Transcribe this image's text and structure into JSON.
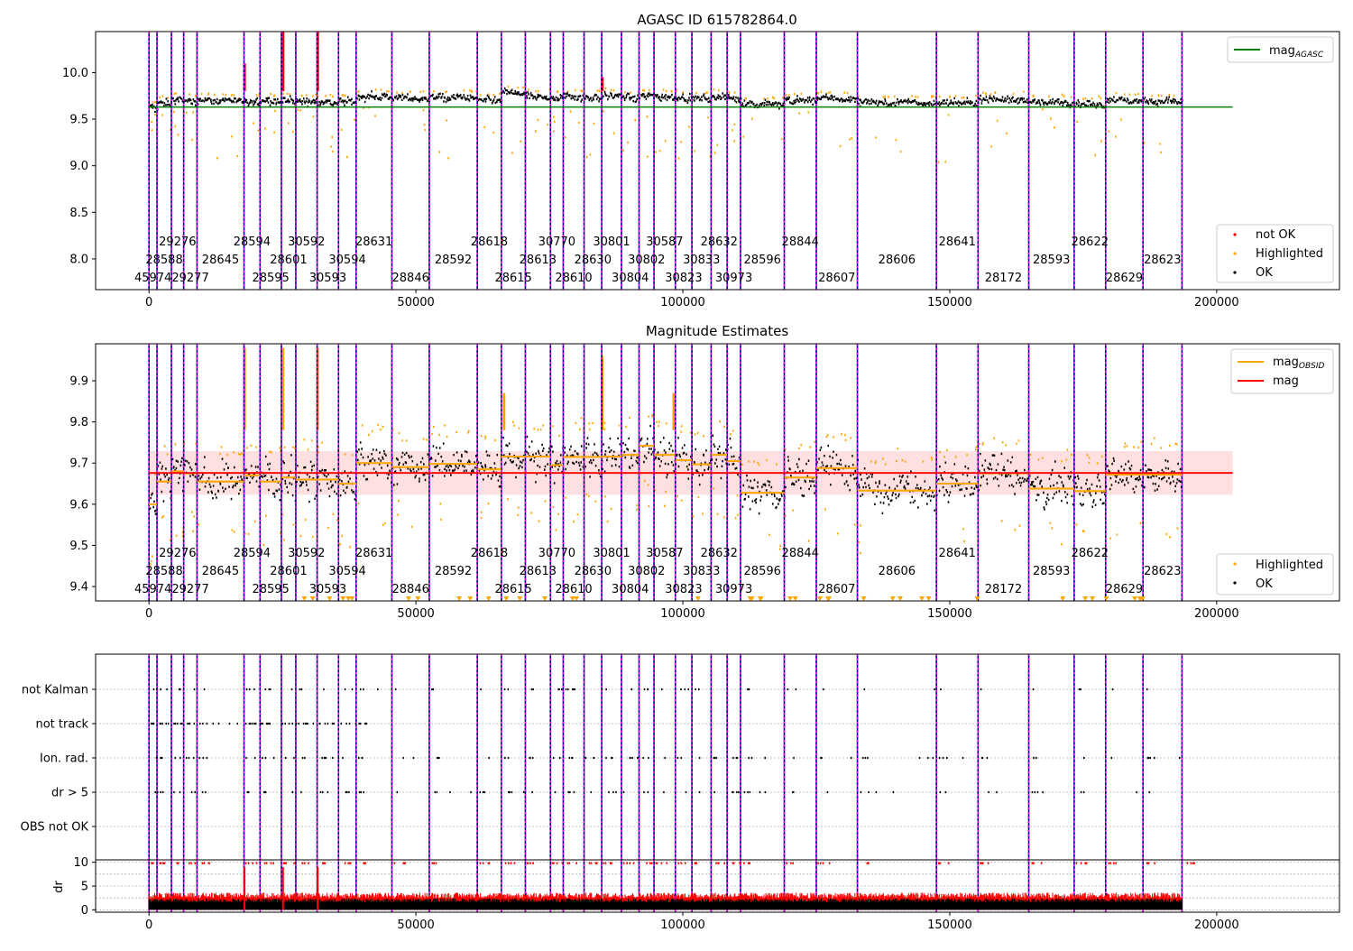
{
  "page": {
    "title": "AGASC ID 615782864.0"
  },
  "chart_data": [
    {
      "id": "magnitudes",
      "type": "scatter",
      "title": "AGASC ID 615782864.0",
      "xlim": [
        -10000,
        223000
      ],
      "ylim": [
        7.67,
        10.44
      ],
      "xticks": [
        0,
        50000,
        100000,
        150000,
        200000
      ],
      "yticks": [
        8.0,
        8.5,
        9.0,
        9.5,
        10.0
      ],
      "ytick_labels": [
        "8.0",
        "8.5",
        "9.0",
        "9.5",
        "10.0"
      ],
      "legend_top": "top-right",
      "legend_bottom": "bottom-right",
      "mag_agasc": 9.63,
      "mag_agasc_xrange": [
        0,
        203000
      ],
      "legend": {
        "line_label": "mag",
        "line_sub": "AGASC",
        "line_color": "#008000",
        "not_ok": "not OK",
        "highlighted": "Highlighted",
        "ok": "OK",
        "colors": {
          "not_ok": "#ff0000",
          "highlighted": "#ffa500",
          "ok": "#000000"
        }
      },
      "segments": [
        {
          "x0": 0,
          "x1": 1500,
          "mag": 9.62
        },
        {
          "x0": 1500,
          "x1": 4200,
          "mag": 9.67
        },
        {
          "x0": 4200,
          "x1": 6500,
          "mag": 9.7
        },
        {
          "x0": 6500,
          "x1": 9000,
          "mag": 9.69
        },
        {
          "x0": 9000,
          "x1": 17800,
          "mag": 9.7
        },
        {
          "x0": 17800,
          "x1": 20800,
          "mag": 9.69
        },
        {
          "x0": 20800,
          "x1": 24800,
          "mag": 9.69
        },
        {
          "x0": 24800,
          "x1": 27500,
          "mag": 9.7
        },
        {
          "x0": 27500,
          "x1": 31500,
          "mag": 9.69
        },
        {
          "x0": 31500,
          "x1": 35500,
          "mag": 9.68
        },
        {
          "x0": 35500,
          "x1": 38800,
          "mag": 9.69
        },
        {
          "x0": 38800,
          "x1": 45500,
          "mag": 9.74
        },
        {
          "x0": 45500,
          "x1": 52500,
          "mag": 9.72
        },
        {
          "x0": 52500,
          "x1": 61500,
          "mag": 9.73
        },
        {
          "x0": 61500,
          "x1": 66000,
          "mag": 9.7
        },
        {
          "x0": 66000,
          "x1": 70500,
          "mag": 9.78
        },
        {
          "x0": 70500,
          "x1": 75200,
          "mag": 9.74
        },
        {
          "x0": 75200,
          "x1": 77600,
          "mag": 9.72
        },
        {
          "x0": 77600,
          "x1": 81500,
          "mag": 9.74
        },
        {
          "x0": 81500,
          "x1": 84800,
          "mag": 9.73
        },
        {
          "x0": 84800,
          "x1": 88500,
          "mag": 9.75
        },
        {
          "x0": 88500,
          "x1": 91800,
          "mag": 9.73
        },
        {
          "x0": 91800,
          "x1": 94600,
          "mag": 9.75
        },
        {
          "x0": 94600,
          "x1": 98600,
          "mag": 9.74
        },
        {
          "x0": 98600,
          "x1": 101700,
          "mag": 9.73
        },
        {
          "x0": 101700,
          "x1": 105300,
          "mag": 9.72
        },
        {
          "x0": 105300,
          "x1": 108300,
          "mag": 9.74
        },
        {
          "x0": 108300,
          "x1": 110800,
          "mag": 9.72
        },
        {
          "x0": 110800,
          "x1": 119000,
          "mag": 9.66
        },
        {
          "x0": 119000,
          "x1": 125000,
          "mag": 9.7
        },
        {
          "x0": 125000,
          "x1": 132700,
          "mag": 9.72
        },
        {
          "x0": 132700,
          "x1": 147500,
          "mag": 9.68
        },
        {
          "x0": 147500,
          "x1": 155300,
          "mag": 9.67
        },
        {
          "x0": 155300,
          "x1": 164800,
          "mag": 9.71
        },
        {
          "x0": 164800,
          "x1": 173300,
          "mag": 9.68
        },
        {
          "x0": 173300,
          "x1": 179200,
          "mag": 9.66
        },
        {
          "x0": 179200,
          "x1": 186200,
          "mag": 9.7
        },
        {
          "x0": 186200,
          "x1": 193500,
          "mag": 9.69
        }
      ],
      "spikes": [
        {
          "x": 17900,
          "to": 10.1
        },
        {
          "x": 25100,
          "to": 10.44
        },
        {
          "x": 31600,
          "to": 10.44
        },
        {
          "x": 84900,
          "to": 9.95
        }
      ]
    },
    {
      "id": "magnitude-estimates",
      "type": "scatter",
      "title": "Magnitude Estimates",
      "xlim": [
        -10000,
        223000
      ],
      "ylim": [
        9.365,
        9.99
      ],
      "xticks": [
        0,
        50000,
        100000,
        150000,
        200000
      ],
      "yticks": [
        9.4,
        9.5,
        9.6,
        9.7,
        9.8,
        9.9
      ],
      "ytick_labels": [
        "9.4",
        "9.5",
        "9.6",
        "9.7",
        "9.8",
        "9.9"
      ],
      "mag": 9.676,
      "mag_band": [
        9.623,
        9.729
      ],
      "mag_xrange": [
        0,
        203000
      ],
      "legend": {
        "obsid_label": "mag",
        "obsid_sub": "OBSID",
        "obsid_color": "#ffa500",
        "mag_label": "mag",
        "mag_color": "#ff0000",
        "highlighted": "Highlighted",
        "ok": "OK"
      },
      "segments": [
        {
          "x0": 0,
          "x1": 1500,
          "mag": 9.6
        },
        {
          "x0": 1500,
          "x1": 4200,
          "mag": 9.655
        },
        {
          "x0": 4200,
          "x1": 6500,
          "mag": 9.68
        },
        {
          "x0": 6500,
          "x1": 9000,
          "mag": 9.675
        },
        {
          "x0": 9000,
          "x1": 17800,
          "mag": 9.655
        },
        {
          "x0": 17800,
          "x1": 20800,
          "mag": 9.67
        },
        {
          "x0": 20800,
          "x1": 24800,
          "mag": 9.655
        },
        {
          "x0": 24800,
          "x1": 27500,
          "mag": 9.665
        },
        {
          "x0": 27500,
          "x1": 31500,
          "mag": 9.66
        },
        {
          "x0": 31500,
          "x1": 35500,
          "mag": 9.66
        },
        {
          "x0": 35500,
          "x1": 38800,
          "mag": 9.65
        },
        {
          "x0": 38800,
          "x1": 45500,
          "mag": 9.7
        },
        {
          "x0": 45500,
          "x1": 52500,
          "mag": 9.69
        },
        {
          "x0": 52500,
          "x1": 61500,
          "mag": 9.698
        },
        {
          "x0": 61500,
          "x1": 66000,
          "mag": 9.685
        },
        {
          "x0": 66000,
          "x1": 70500,
          "mag": 9.716
        },
        {
          "x0": 70500,
          "x1": 75200,
          "mag": 9.716
        },
        {
          "x0": 75200,
          "x1": 77600,
          "mag": 9.695
        },
        {
          "x0": 77600,
          "x1": 81500,
          "mag": 9.715
        },
        {
          "x0": 81500,
          "x1": 84800,
          "mag": 9.715
        },
        {
          "x0": 84800,
          "x1": 88500,
          "mag": 9.716
        },
        {
          "x0": 88500,
          "x1": 91800,
          "mag": 9.72
        },
        {
          "x0": 91800,
          "x1": 94600,
          "mag": 9.742
        },
        {
          "x0": 94600,
          "x1": 98600,
          "mag": 9.72
        },
        {
          "x0": 98600,
          "x1": 101700,
          "mag": 9.707
        },
        {
          "x0": 101700,
          "x1": 105300,
          "mag": 9.697
        },
        {
          "x0": 105300,
          "x1": 108300,
          "mag": 9.72
        },
        {
          "x0": 108300,
          "x1": 110800,
          "mag": 9.705
        },
        {
          "x0": 110800,
          "x1": 119000,
          "mag": 9.628
        },
        {
          "x0": 119000,
          "x1": 125000,
          "mag": 9.665
        },
        {
          "x0": 125000,
          "x1": 132700,
          "mag": 9.688
        },
        {
          "x0": 132700,
          "x1": 147500,
          "mag": 9.633
        },
        {
          "x0": 147500,
          "x1": 155300,
          "mag": 9.65
        },
        {
          "x0": 155300,
          "x1": 164800,
          "mag": 9.675
        },
        {
          "x0": 164800,
          "x1": 173300,
          "mag": 9.638
        },
        {
          "x0": 173300,
          "x1": 179200,
          "mag": 9.632
        },
        {
          "x0": 179200,
          "x1": 186200,
          "mag": 9.672
        },
        {
          "x0": 186200,
          "x1": 193500,
          "mag": 9.672
        }
      ],
      "spikes": [
        {
          "x": 17900,
          "to": 9.98
        },
        {
          "x": 25100,
          "to": 9.98
        },
        {
          "x": 31600,
          "to": 9.98
        },
        {
          "x": 84900,
          "to": 9.96
        },
        {
          "x": 98300,
          "to": 9.87
        },
        {
          "x": 66500,
          "to": 9.87
        }
      ]
    },
    {
      "id": "flags",
      "type": "scatter",
      "xlim": [
        -10000,
        223000
      ],
      "xticks": [
        0,
        50000,
        100000,
        150000,
        200000
      ],
      "categories": [
        "not Kalman",
        "not track",
        "Ion. rad.",
        "dr > 5",
        "OBS not OK"
      ],
      "dr_ylim": [
        -0.5,
        10.5
      ],
      "dr_yticks": [
        0,
        5,
        10
      ],
      "dr_ytick_labels": [
        "0",
        "5",
        "10"
      ],
      "dr_ylabel": "dr",
      "dr_gridlines": [
        0,
        2.5,
        5,
        7.5,
        10
      ],
      "dr_colors": {
        "ok": "#000000",
        "bad": "#ff0000"
      }
    }
  ],
  "obsids": {
    "boundaries": [
      0,
      1500,
      4200,
      6500,
      9000,
      17800,
      20800,
      24800,
      27500,
      31500,
      35500,
      38800,
      45500,
      52500,
      61500,
      66000,
      70500,
      75200,
      77600,
      81500,
      84800,
      88500,
      91800,
      94600,
      98600,
      101700,
      105300,
      108300,
      110800,
      119000,
      125000,
      132700,
      147500,
      155300,
      164800,
      173300,
      179200,
      186200,
      193500
    ],
    "labels": [
      {
        "text": "45974",
        "x": 750,
        "row": 2
      },
      {
        "text": "28588",
        "x": 2850,
        "row": 1
      },
      {
        "text": "29276",
        "x": 5350,
        "row": 0
      },
      {
        "text": "29277",
        "x": 7750,
        "row": 2
      },
      {
        "text": "28645",
        "x": 13400,
        "row": 1
      },
      {
        "text": "28594",
        "x": 19300,
        "row": 0
      },
      {
        "text": "28595",
        "x": 22800,
        "row": 2
      },
      {
        "text": "28601",
        "x": 26150,
        "row": 1
      },
      {
        "text": "30592",
        "x": 29500,
        "row": 0
      },
      {
        "text": "30593",
        "x": 33500,
        "row": 2
      },
      {
        "text": "30594",
        "x": 37150,
        "row": 1
      },
      {
        "text": "28631",
        "x": 42150,
        "row": 0
      },
      {
        "text": "28846",
        "x": 49000,
        "row": 2
      },
      {
        "text": "28592",
        "x": 57000,
        "row": 1
      },
      {
        "text": "28618",
        "x": 63750,
        "row": 0
      },
      {
        "text": "28615",
        "x": 68250,
        "row": 2
      },
      {
        "text": "28613",
        "x": 72850,
        "row": 1
      },
      {
        "text": "30770",
        "x": 76400,
        "row": 0
      },
      {
        "text": "28610",
        "x": 79550,
        "row": 2
      },
      {
        "text": "28630",
        "x": 83150,
        "row": 1
      },
      {
        "text": "30801",
        "x": 86650,
        "row": 0
      },
      {
        "text": "30804",
        "x": 90150,
        "row": 2
      },
      {
        "text": "30802",
        "x": 93200,
        "row": 1
      },
      {
        "text": "30587",
        "x": 96600,
        "row": 0
      },
      {
        "text": "30823",
        "x": 100150,
        "row": 2
      },
      {
        "text": "30833",
        "x": 103500,
        "row": 1
      },
      {
        "text": "28632",
        "x": 106800,
        "row": 0
      },
      {
        "text": "30973",
        "x": 109550,
        "row": 2
      },
      {
        "text": "28596",
        "x": 114900,
        "row": 1
      },
      {
        "text": "28844",
        "x": 122000,
        "row": 0
      },
      {
        "text": "28607",
        "x": 128850,
        "row": 2
      },
      {
        "text": "28606",
        "x": 140100,
        "row": 1
      },
      {
        "text": "28641",
        "x": 151400,
        "row": 0
      },
      {
        "text": "28172",
        "x": 160050,
        "row": 2
      },
      {
        "text": "28593",
        "x": 169050,
        "row": 1
      },
      {
        "text": "28622",
        "x": 176250,
        "row": 0
      },
      {
        "text": "28629",
        "x": 182700,
        "row": 2
      },
      {
        "text": "28623",
        "x": 189850,
        "row": 1
      }
    ]
  }
}
